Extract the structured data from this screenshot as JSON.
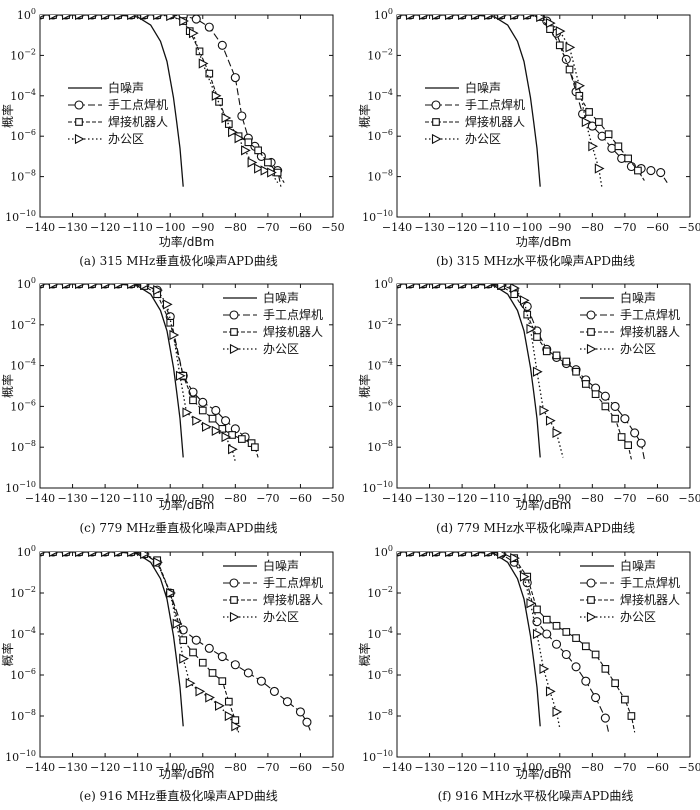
{
  "figure": {
    "xlabel": "功率/dBm",
    "ylabel": "概率",
    "xlim": [
      -140,
      -50
    ],
    "ylim_log10": [
      -10,
      0
    ],
    "xticks": [
      -140,
      -130,
      -120,
      -110,
      -100,
      -90,
      -80,
      -70,
      -60,
      -50
    ],
    "ytick_exponents": [
      0,
      -2,
      -4,
      -6,
      -8,
      -10
    ],
    "legend_labels": [
      "白噪声",
      "手工点焊机",
      "焊接机器人",
      "办公区"
    ]
  },
  "chart_data": [
    {
      "type": "line",
      "caption": "(a) 315 MHz垂直极化噪声APD曲线",
      "legend_position": "left",
      "series": [
        {
          "name": "白噪声",
          "x": [
            -140,
            -116,
            -110,
            -106,
            -103,
            -101,
            -99,
            -98,
            -97,
            -96
          ],
          "y_log10": [
            0,
            0,
            -0.1,
            -0.5,
            -1.3,
            -2.3,
            -4.1,
            -5.3,
            -6.6,
            -8.5
          ]
        },
        {
          "name": "手工点焊机",
          "x": [
            -140,
            -136,
            -132,
            -128,
            -124,
            -120,
            -116,
            -112,
            -108,
            -104,
            -100,
            -96,
            -92,
            -88,
            -84,
            -80,
            -78,
            -76,
            -74,
            -72,
            -69,
            -67,
            -66
          ],
          "y_log10": [
            0,
            0,
            0,
            0,
            0,
            0,
            0,
            0,
            0,
            0,
            0,
            -0.05,
            -0.2,
            -0.6,
            -1.5,
            -3.1,
            -5,
            -6.1,
            -6.5,
            -7,
            -7.3,
            -7.7,
            -8.5
          ]
        },
        {
          "name": "焊接机器人",
          "x": [
            -140,
            -136,
            -132,
            -128,
            -124,
            -120,
            -116,
            -112,
            -108,
            -104,
            -100,
            -96,
            -94,
            -91,
            -88,
            -85,
            -82,
            -79,
            -76,
            -73,
            -70,
            -67,
            -65
          ],
          "y_log10": [
            0,
            0,
            0,
            0,
            0,
            0,
            0,
            0,
            0,
            0,
            0,
            -0.3,
            -0.8,
            -1.8,
            -2.9,
            -4.3,
            -5.4,
            -6,
            -6.3,
            -6.7,
            -7.3,
            -7.8,
            -8.3
          ]
        },
        {
          "name": "办公区",
          "x": [
            -140,
            -136,
            -132,
            -128,
            -124,
            -120,
            -116,
            -112,
            -108,
            -104,
            -100,
            -96,
            -93,
            -90,
            -86,
            -83,
            -81,
            -79,
            -77,
            -75,
            -73,
            -71,
            -69,
            -67
          ],
          "y_log10": [
            0,
            0,
            0,
            0,
            0,
            0,
            0,
            0,
            0,
            0,
            -0.05,
            -0.3,
            -0.9,
            -2.4,
            -4,
            -5.1,
            -5.8,
            -6.1,
            -6.7,
            -7.3,
            -7.6,
            -7.7,
            -7.8,
            -8.3
          ]
        }
      ]
    },
    {
      "type": "line",
      "caption": "(b) 315 MHz水平极化噪声APD曲线",
      "legend_position": "left",
      "series": [
        {
          "name": "白噪声",
          "x": [
            -140,
            -116,
            -110,
            -106,
            -103,
            -101,
            -99,
            -98,
            -97,
            -96
          ],
          "y_log10": [
            0,
            0,
            -0.1,
            -0.5,
            -1.3,
            -2.3,
            -4.1,
            -5.3,
            -6.6,
            -8.5
          ]
        },
        {
          "name": "手工点焊机",
          "x": [
            -140,
            -136,
            -132,
            -128,
            -124,
            -120,
            -116,
            -112,
            -108,
            -104,
            -100,
            -96,
            -94,
            -91,
            -88,
            -85,
            -83,
            -80,
            -77,
            -74,
            -71,
            -68,
            -65,
            -62,
            -59,
            -57
          ],
          "y_log10": [
            0,
            0,
            0,
            0,
            0,
            0,
            0,
            0,
            0,
            0,
            0,
            -0.05,
            -0.3,
            -0.9,
            -2.2,
            -3.8,
            -4.9,
            -5.5,
            -6,
            -6.6,
            -7.1,
            -7.5,
            -7.6,
            -7.7,
            -7.8,
            -8.3
          ]
        },
        {
          "name": "焊接机器人",
          "x": [
            -140,
            -136,
            -132,
            -128,
            -124,
            -120,
            -116,
            -112,
            -108,
            -104,
            -100,
            -96,
            -93,
            -90,
            -87,
            -84,
            -81,
            -78,
            -75,
            -72,
            -69,
            -66,
            -64
          ],
          "y_log10": [
            0,
            0,
            0,
            0,
            0,
            0,
            0,
            0,
            0,
            0,
            0,
            -0.1,
            -0.7,
            -1.5,
            -2.7,
            -4,
            -4.8,
            -5.3,
            -5.9,
            -6.5,
            -7.1,
            -7.7,
            -8.2
          ]
        },
        {
          "name": "办公区",
          "x": [
            -140,
            -136,
            -132,
            -128,
            -124,
            -120,
            -116,
            -112,
            -108,
            -104,
            -100,
            -96,
            -93,
            -90,
            -87,
            -84,
            -82,
            -80,
            -78,
            -77
          ],
          "y_log10": [
            0,
            0,
            0,
            0,
            0,
            0,
            0,
            0,
            0,
            0,
            0,
            -0.1,
            -0.4,
            -0.8,
            -1.6,
            -3.5,
            -5.3,
            -6.5,
            -7.6,
            -8.6
          ]
        }
      ]
    },
    {
      "type": "line",
      "caption": "(c) 779 MHz垂直极化噪声APD曲线",
      "legend_position": "right",
      "series": [
        {
          "name": "白噪声",
          "x": [
            -140,
            -116,
            -110,
            -106,
            -103,
            -101,
            -99,
            -98,
            -97,
            -96
          ],
          "y_log10": [
            0,
            0,
            -0.1,
            -0.5,
            -1.3,
            -2.3,
            -4.1,
            -5.3,
            -6.6,
            -8.5
          ]
        },
        {
          "name": "手工点焊机",
          "x": [
            -140,
            -136,
            -132,
            -128,
            -124,
            -120,
            -116,
            -112,
            -108,
            -104,
            -100,
            -96,
            -93,
            -90,
            -86,
            -83,
            -80,
            -77,
            -75
          ],
          "y_log10": [
            0,
            0,
            0,
            0,
            0,
            0,
            0,
            0,
            -0.05,
            -0.3,
            -1.6,
            -4.5,
            -5.3,
            -5.8,
            -6.2,
            -6.7,
            -7.1,
            -7.5,
            -7.9
          ]
        },
        {
          "name": "焊接机器人",
          "x": [
            -140,
            -136,
            -132,
            -128,
            -124,
            -120,
            -116,
            -112,
            -108,
            -104,
            -100,
            -96,
            -93,
            -90,
            -87,
            -84,
            -81,
            -78,
            -75,
            -74,
            -73
          ],
          "y_log10": [
            0,
            0,
            0,
            0,
            0,
            0,
            0,
            0,
            -0.1,
            -0.5,
            -1.9,
            -4.5,
            -5.7,
            -6.2,
            -6.6,
            -7.1,
            -7.4,
            -7.6,
            -7.8,
            -8,
            -8.5
          ]
        },
        {
          "name": "办公区",
          "x": [
            -140,
            -136,
            -132,
            -128,
            -124,
            -120,
            -116,
            -112,
            -108,
            -104,
            -101,
            -99,
            -97,
            -95,
            -92,
            -89,
            -86,
            -83,
            -81,
            -80
          ],
          "y_log10": [
            0,
            0,
            0,
            0,
            0,
            0,
            0,
            0,
            -0.05,
            -0.3,
            -1,
            -2.5,
            -4.5,
            -6.3,
            -6.7,
            -7,
            -7.2,
            -7.5,
            -8.1,
            -8.7
          ]
        }
      ]
    },
    {
      "type": "line",
      "caption": "(d) 779 MHz水平极化噪声APD曲线",
      "legend_position": "right",
      "series": [
        {
          "name": "白噪声",
          "x": [
            -140,
            -116,
            -110,
            -106,
            -103,
            -101,
            -99,
            -98,
            -97,
            -96
          ],
          "y_log10": [
            0,
            0,
            -0.1,
            -0.5,
            -1.3,
            -2.3,
            -4.1,
            -5.3,
            -6.6,
            -8.5
          ]
        },
        {
          "name": "手工点焊机",
          "x": [
            -140,
            -136,
            -132,
            -128,
            -124,
            -120,
            -116,
            -112,
            -108,
            -104,
            -100,
            -97,
            -94,
            -91,
            -88,
            -85,
            -82,
            -79,
            -76,
            -73,
            -70,
            -67,
            -65,
            -64
          ],
          "y_log10": [
            0,
            0,
            0,
            0,
            0,
            0,
            0,
            0,
            -0.05,
            -0.3,
            -1.1,
            -2.3,
            -3.2,
            -3.6,
            -3.9,
            -4.2,
            -4.7,
            -5.1,
            -5.5,
            -6,
            -6.6,
            -7.3,
            -7.8,
            -8.6
          ]
        },
        {
          "name": "焊接机器人",
          "x": [
            -140,
            -136,
            -132,
            -128,
            -124,
            -120,
            -116,
            -112,
            -108,
            -104,
            -100,
            -97,
            -94,
            -91,
            -88,
            -85,
            -82,
            -79,
            -76,
            -73,
            -71,
            -69,
            -68
          ],
          "y_log10": [
            0,
            0,
            0,
            0,
            0,
            0,
            0,
            0,
            -0.1,
            -0.5,
            -1.5,
            -2.6,
            -3.3,
            -3.5,
            -3.8,
            -4.3,
            -4.9,
            -5.4,
            -6,
            -6.6,
            -7.5,
            -7.9,
            -8.6
          ]
        },
        {
          "name": "办公区",
          "x": [
            -140,
            -136,
            -132,
            -128,
            -124,
            -120,
            -116,
            -112,
            -108,
            -104,
            -101,
            -99,
            -97,
            -95,
            -93,
            -91,
            -89
          ],
          "y_log10": [
            0,
            0,
            0,
            0,
            0,
            0,
            0,
            0,
            -0.05,
            -0.2,
            -0.8,
            -2.2,
            -4.3,
            -6.2,
            -6.7,
            -7.3,
            -8.5
          ]
        }
      ]
    },
    {
      "type": "line",
      "caption": "(e) 916 MHz垂直极化噪声APD曲线",
      "legend_position": "right",
      "series": [
        {
          "name": "白噪声",
          "x": [
            -140,
            -116,
            -110,
            -106,
            -103,
            -101,
            -99,
            -98,
            -97,
            -96
          ],
          "y_log10": [
            0,
            0,
            -0.1,
            -0.5,
            -1.3,
            -2.3,
            -4.1,
            -5.3,
            -6.6,
            -8.5
          ]
        },
        {
          "name": "手工点焊机",
          "x": [
            -140,
            -136,
            -132,
            -128,
            -124,
            -120,
            -116,
            -112,
            -108,
            -104,
            -100,
            -96,
            -92,
            -88,
            -84,
            -80,
            -76,
            -72,
            -68,
            -64,
            -60,
            -58,
            -57
          ],
          "y_log10": [
            0,
            0,
            0,
            0,
            0,
            0,
            0,
            0,
            -0.1,
            -0.5,
            -2,
            -3.8,
            -4.3,
            -4.7,
            -5.1,
            -5.5,
            -5.9,
            -6.3,
            -6.8,
            -7.3,
            -7.8,
            -8.3,
            -8.7
          ]
        },
        {
          "name": "焊接机器人",
          "x": [
            -140,
            -136,
            -132,
            -128,
            -124,
            -120,
            -116,
            -112,
            -108,
            -104,
            -100,
            -96,
            -93,
            -90,
            -87,
            -84,
            -82,
            -80,
            -79
          ],
          "y_log10": [
            0,
            0,
            0,
            0,
            0,
            0,
            0,
            0,
            -0.1,
            -0.4,
            -2,
            -4.3,
            -4.9,
            -5.4,
            -5.9,
            -6.3,
            -7.3,
            -8.2,
            -8.8
          ]
        },
        {
          "name": "办公区",
          "x": [
            -140,
            -136,
            -132,
            -128,
            -124,
            -120,
            -116,
            -112,
            -108,
            -104,
            -100,
            -98,
            -96,
            -94,
            -91,
            -88,
            -85,
            -82,
            -80,
            -79
          ],
          "y_log10": [
            0,
            0,
            0,
            0,
            0,
            0,
            0,
            0,
            -0.1,
            -0.5,
            -2,
            -3.5,
            -5.2,
            -6.4,
            -6.8,
            -7.1,
            -7.5,
            -8,
            -8.5,
            -8.8
          ]
        }
      ]
    },
    {
      "type": "line",
      "caption": "(f) 916 MHz水平极化噪声APD曲线",
      "legend_position": "right",
      "series": [
        {
          "name": "白噪声",
          "x": [
            -140,
            -116,
            -110,
            -106,
            -103,
            -101,
            -99,
            -98,
            -97,
            -96
          ],
          "y_log10": [
            0,
            0,
            -0.1,
            -0.5,
            -1.3,
            -2.3,
            -4.1,
            -5.3,
            -6.6,
            -8.5
          ]
        },
        {
          "name": "手工点焊机",
          "x": [
            -140,
            -136,
            -132,
            -128,
            -124,
            -120,
            -116,
            -112,
            -108,
            -104,
            -100,
            -97,
            -94,
            -91,
            -88,
            -85,
            -82,
            -79,
            -76,
            -75
          ],
          "y_log10": [
            0,
            0,
            0,
            0,
            0,
            0,
            0,
            0,
            -0.1,
            -0.5,
            -1.5,
            -3.4,
            -4,
            -4.5,
            -5,
            -5.6,
            -6.3,
            -7.1,
            -8.1,
            -8.8
          ]
        },
        {
          "name": "焊接机器人",
          "x": [
            -140,
            -136,
            -132,
            -128,
            -124,
            -120,
            -116,
            -112,
            -108,
            -104,
            -100,
            -97,
            -94,
            -91,
            -88,
            -85,
            -82,
            -79,
            -76,
            -73,
            -70,
            -68,
            -67
          ],
          "y_log10": [
            0,
            0,
            0,
            0,
            0,
            0,
            0,
            0,
            -0.05,
            -0.3,
            -1.2,
            -2.8,
            -3.3,
            -3.6,
            -3.9,
            -4.2,
            -4.6,
            -5,
            -5.7,
            -6.4,
            -7.2,
            -8,
            -8.8
          ]
        },
        {
          "name": "办公区",
          "x": [
            -140,
            -136,
            -132,
            -128,
            -124,
            -120,
            -116,
            -112,
            -108,
            -104,
            -101,
            -99,
            -97,
            -95,
            -93,
            -91,
            -90
          ],
          "y_log10": [
            0,
            0,
            0,
            0,
            0,
            0,
            0,
            0,
            -0.1,
            -0.3,
            -1.2,
            -2.5,
            -4,
            -5.7,
            -6.8,
            -7.8,
            -8.6
          ]
        }
      ]
    }
  ]
}
